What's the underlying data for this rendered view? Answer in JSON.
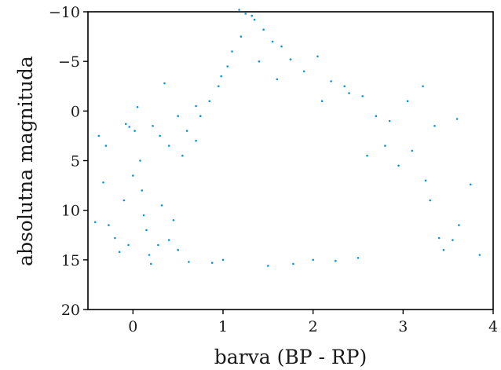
{
  "chart_data": {
    "type": "scatter",
    "title": "",
    "xlabel": "barva (BP - RP)",
    "ylabel": "absolutna magnituda",
    "xlim": [
      -0.5,
      4
    ],
    "ylim": [
      20,
      -10
    ],
    "y_inverted": true,
    "grid": false,
    "point_color": "#0c95d8",
    "x_ticks": [
      0,
      1,
      2,
      3,
      4
    ],
    "x_tick_labels": [
      "0",
      "1",
      "2",
      "3",
      "4"
    ],
    "y_ticks": [
      -10,
      -5,
      0,
      5,
      10,
      15,
      20
    ],
    "y_tick_labels": [
      "−10",
      "−5",
      "0",
      "5",
      "10",
      "15",
      "20"
    ],
    "points": [
      [
        -0.42,
        11.2
      ],
      [
        -0.38,
        2.5
      ],
      [
        -0.3,
        3.5
      ],
      [
        -0.33,
        7.2
      ],
      [
        -0.27,
        11.5
      ],
      [
        -0.2,
        12.8
      ],
      [
        -0.1,
        9.0
      ],
      [
        -0.15,
        14.2
      ],
      [
        -0.05,
        13.5
      ],
      [
        -0.08,
        1.3
      ],
      [
        -0.04,
        1.6
      ],
      [
        0.05,
        -0.4
      ],
      [
        0.02,
        2.0
      ],
      [
        0.08,
        5.0
      ],
      [
        0.0,
        6.5
      ],
      [
        0.1,
        8.0
      ],
      [
        0.12,
        10.5
      ],
      [
        0.15,
        12.0
      ],
      [
        0.18,
        14.5
      ],
      [
        0.2,
        15.4
      ],
      [
        0.22,
        1.5
      ],
      [
        0.3,
        2.5
      ],
      [
        0.35,
        -2.8
      ],
      [
        0.4,
        3.5
      ],
      [
        0.55,
        4.5
      ],
      [
        0.6,
        2.0
      ],
      [
        0.7,
        3.0
      ],
      [
        0.4,
        13.0
      ],
      [
        0.5,
        14.0
      ],
      [
        0.45,
        11.0
      ],
      [
        0.28,
        13.5
      ],
      [
        0.32,
        9.5
      ],
      [
        0.62,
        15.2
      ],
      [
        0.75,
        0.5
      ],
      [
        0.85,
        -1.0
      ],
      [
        0.95,
        -2.5
      ],
      [
        1.05,
        -4.5
      ],
      [
        1.1,
        -6.0
      ],
      [
        1.2,
        -7.5
      ],
      [
        1.25,
        -9.8
      ],
      [
        1.32,
        -9.6
      ],
      [
        1.45,
        -8.2
      ],
      [
        1.55,
        -7.0
      ],
      [
        1.65,
        -6.5
      ],
      [
        1.75,
        -5.2
      ],
      [
        1.9,
        -4.0
      ],
      [
        2.05,
        -5.5
      ],
      [
        2.2,
        -3.0
      ],
      [
        2.35,
        -2.5
      ],
      [
        2.55,
        -1.5
      ],
      [
        2.7,
        0.5
      ],
      [
        2.85,
        1.0
      ],
      [
        3.05,
        -1.0
      ],
      [
        3.22,
        -2.5
      ],
      [
        3.35,
        1.5
      ],
      [
        3.6,
        0.8
      ],
      [
        3.75,
        7.4
      ],
      [
        3.85,
        14.5
      ],
      [
        3.55,
        13.0
      ],
      [
        3.4,
        12.8
      ],
      [
        3.62,
        11.5
      ],
      [
        3.45,
        14.0
      ],
      [
        2.8,
        3.5
      ],
      [
        2.95,
        5.5
      ],
      [
        2.6,
        4.5
      ],
      [
        1.0,
        15.0
      ],
      [
        1.5,
        15.6
      ],
      [
        2.0,
        15.0
      ],
      [
        2.5,
        14.8
      ],
      [
        0.88,
        15.3
      ],
      [
        1.78,
        15.4
      ],
      [
        2.25,
        15.1
      ],
      [
        1.18,
        -10.2
      ],
      [
        1.35,
        -9.2
      ],
      [
        0.98,
        -3.5
      ],
      [
        1.4,
        -5.0
      ],
      [
        1.6,
        -3.2
      ],
      [
        2.4,
        -1.8
      ],
      [
        2.1,
        -1.0
      ],
      [
        0.7,
        -0.5
      ],
      [
        0.5,
        0.5
      ],
      [
        3.1,
        4.0
      ],
      [
        3.25,
        7.0
      ],
      [
        3.3,
        9.0
      ]
    ]
  }
}
